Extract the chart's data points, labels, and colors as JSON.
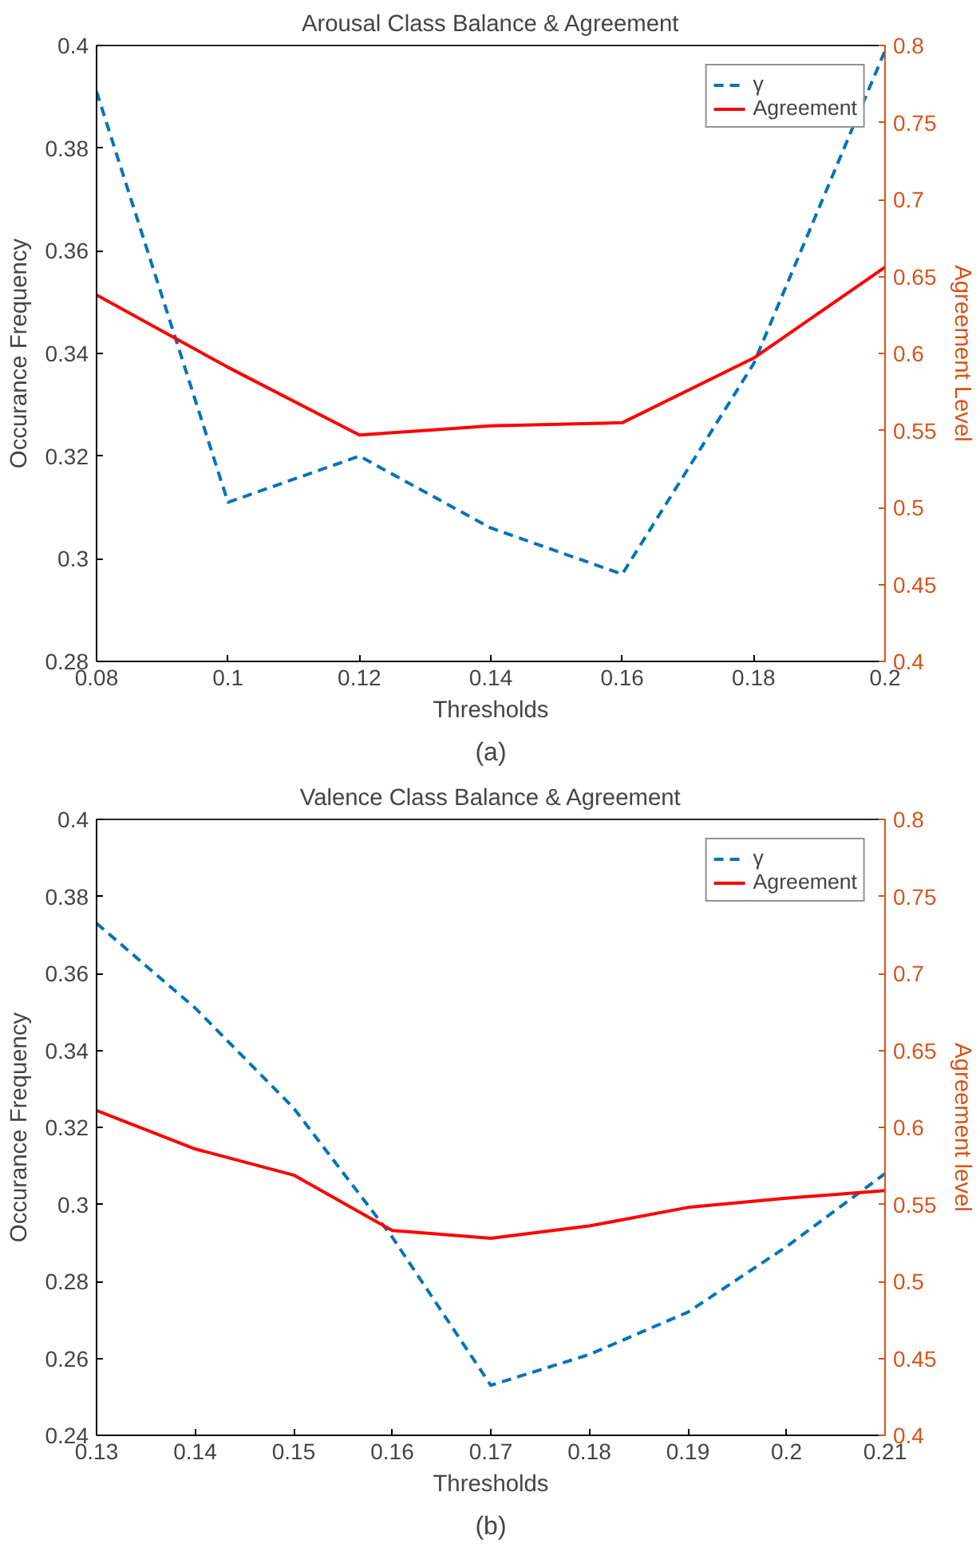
{
  "chart_data": [
    {
      "type": "line",
      "title": "Arousal Class Balance & Agreement",
      "xlabel": "Thresholds",
      "ylabel": "Occurance Frequency",
      "y2label": "Agreement Level",
      "annotations": [
        "(a)"
      ],
      "x": [
        0.08,
        0.1,
        0.12,
        0.14,
        0.16,
        0.18,
        0.2
      ],
      "xlim": [
        0.08,
        0.2
      ],
      "xticks": [
        0.08,
        0.1,
        0.12,
        0.14,
        0.16,
        0.18,
        0.2
      ],
      "ylim": [
        0.28,
        0.4
      ],
      "yticks": [
        0.28,
        0.3,
        0.32,
        0.34,
        0.36,
        0.38,
        0.4
      ],
      "y2lim": [
        0.4,
        0.8
      ],
      "y2ticks": [
        0.4,
        0.45,
        0.5,
        0.55,
        0.6,
        0.65,
        0.7,
        0.75,
        0.8
      ],
      "grid": false,
      "legend": "top right",
      "series": [
        {
          "name": "γ",
          "color": "#0072bd",
          "line_style": "dashed",
          "values": [
            0.391,
            0.311,
            0.32,
            0.306,
            0.297,
            0.338,
            0.399
          ]
        },
        {
          "name": "Agreement",
          "color": "#ff0000",
          "line_style": "solid",
          "axis": "y2",
          "values": [
            0.638,
            0.591,
            0.547,
            0.553,
            0.555,
            0.597,
            0.656
          ]
        }
      ]
    },
    {
      "type": "line",
      "title": "Valence Class Balance & Agreement",
      "xlabel": "Thresholds",
      "ylabel": "Occurance Frequency",
      "y2label": "Agreement level",
      "annotations": [
        "(b)"
      ],
      "x": [
        0.13,
        0.14,
        0.15,
        0.16,
        0.17,
        0.18,
        0.19,
        0.2,
        0.21
      ],
      "xlim": [
        0.13,
        0.21
      ],
      "xticks": [
        0.13,
        0.14,
        0.15,
        0.16,
        0.17,
        0.18,
        0.19,
        0.2,
        0.21
      ],
      "ylim": [
        0.24,
        0.4
      ],
      "yticks": [
        0.24,
        0.26,
        0.28,
        0.3,
        0.32,
        0.34,
        0.36,
        0.38,
        0.4
      ],
      "y2lim": [
        0.4,
        0.8
      ],
      "y2ticks": [
        0.4,
        0.45,
        0.5,
        0.55,
        0.6,
        0.65,
        0.7,
        0.75,
        0.8
      ],
      "grid": false,
      "legend": "top right",
      "series": [
        {
          "name": "γ",
          "color": "#0072bd",
          "line_style": "dashed",
          "values": [
            0.373,
            0.351,
            0.325,
            0.2915,
            0.253,
            0.261,
            0.272,
            0.289,
            0.308
          ]
        },
        {
          "name": "Agreement",
          "color": "#ff0000",
          "line_style": "solid",
          "axis": "y2",
          "values": [
            0.611,
            0.586,
            0.569,
            0.533,
            0.528,
            0.536,
            0.548,
            0.554,
            0.559
          ]
        }
      ]
    }
  ]
}
